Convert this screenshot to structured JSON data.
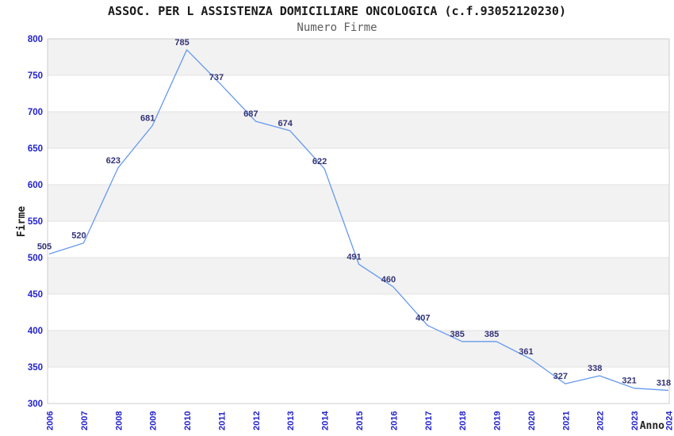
{
  "header": {
    "title": "ASSOC. PER L ASSISTENZA DOMICILIARE ONCOLOGICA (c.f.93052120230)",
    "subtitle": "Numero Firme"
  },
  "chart_data": {
    "type": "line",
    "title": "ASSOC. PER L ASSISTENZA DOMICILIARE ONCOLOGICA (c.f.93052120230)",
    "subtitle": "Numero Firme",
    "categories": [
      "2006",
      "2007",
      "2008",
      "2009",
      "2010",
      "2011",
      "2012",
      "2013",
      "2014",
      "2015",
      "2016",
      "2017",
      "2018",
      "2019",
      "2020",
      "2021",
      "2022",
      "2023",
      "2024"
    ],
    "series": [
      {
        "name": "Numero Firme",
        "values": [
          505,
          520,
          623,
          681,
          785,
          737,
          687,
          674,
          622,
          491,
          460,
          407,
          385,
          385,
          361,
          327,
          338,
          321,
          318
        ]
      }
    ],
    "xlabel": "Anno",
    "ylabel": "Firme",
    "ylim": [
      300,
      800
    ],
    "yticks": [
      300,
      350,
      400,
      450,
      500,
      550,
      600,
      650,
      700,
      750,
      800
    ],
    "ytick_step": 50,
    "grid": true,
    "legend": "none",
    "point_labels_visible": true,
    "x_tick_rotation_deg": -90,
    "colors": {
      "line": "#6699EE",
      "tick_labels": "#2222CC",
      "point_labels": "#333377",
      "band_fill": "#F2F2F2",
      "grid_line": "#E2E2E2",
      "axis_line": "#AAAAAA",
      "plot_border": "#CCCCCC",
      "title": "#1A1A1A",
      "subtitle": "#5C5C5C",
      "axis_title": "#222222"
    }
  }
}
